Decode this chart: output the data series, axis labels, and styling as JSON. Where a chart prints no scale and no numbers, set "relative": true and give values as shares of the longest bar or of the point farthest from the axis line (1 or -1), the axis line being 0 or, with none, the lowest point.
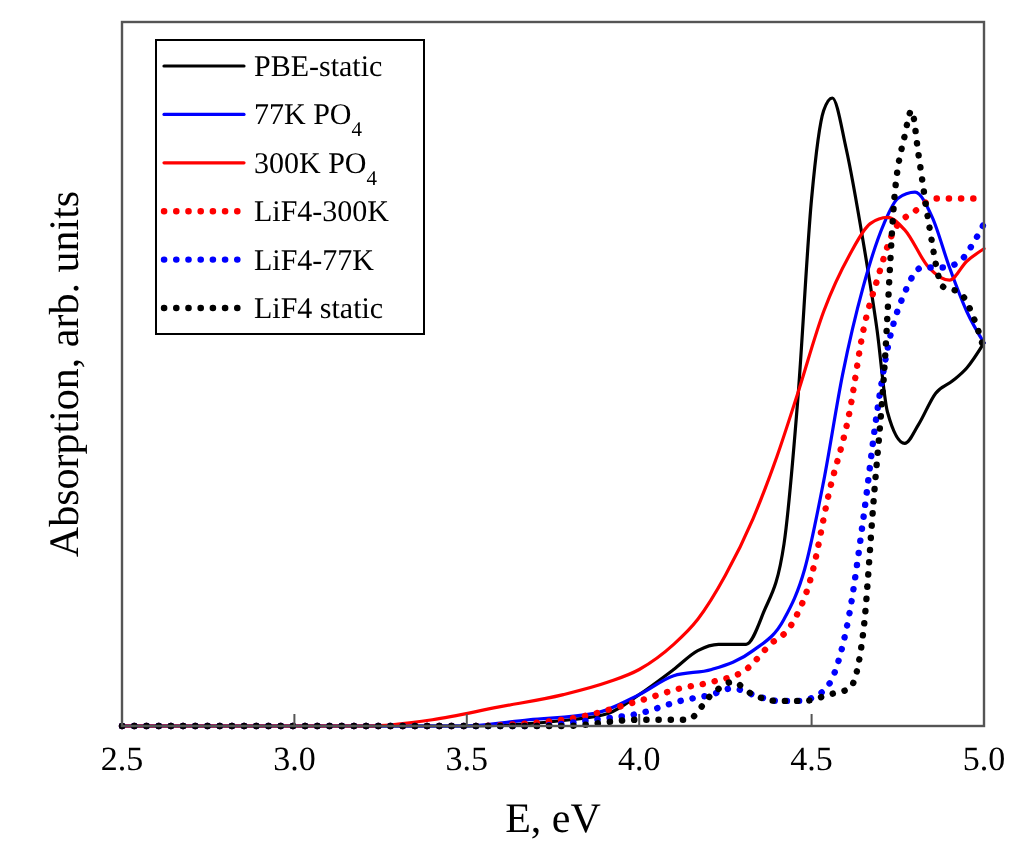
{
  "chart_data": {
    "type": "line",
    "relative": true,
    "xlabel": "E, eV",
    "ylabel": "Absorption, arb. units",
    "xlim": [
      2.5,
      5.0
    ],
    "xticks": [
      {
        "value": 2.5,
        "label": "2.5"
      },
      {
        "value": 3.0,
        "label": "3.0"
      },
      {
        "value": 3.5,
        "label": "3.5"
      },
      {
        "value": 4.0,
        "label": "4.0"
      },
      {
        "value": 4.5,
        "label": "4.5"
      },
      {
        "value": 5.0,
        "label": "5.0"
      }
    ],
    "legend": "top left",
    "series": [
      {
        "name": "PBE-static",
        "color": "#000000",
        "line_style": "solid",
        "x": [
          2.5,
          3.5,
          3.8,
          3.91,
          4.0,
          4.1,
          4.17,
          4.23,
          4.31,
          4.36,
          4.42,
          4.46,
          4.5,
          4.535,
          4.56,
          4.6,
          4.65,
          4.69,
          4.72,
          4.77,
          4.81,
          4.86,
          4.91,
          4.95,
          5.0
        ],
        "values": [
          0,
          0,
          0.01,
          0.02,
          0.05,
          0.09,
          0.12,
          0.13,
          0.13,
          0.18,
          0.29,
          0.52,
          0.84,
          0.98,
          1.0,
          0.92,
          0.77,
          0.63,
          0.5,
          0.45,
          0.48,
          0.53,
          0.55,
          0.57,
          0.61
        ]
      },
      {
        "name": "77K PO$_{4}$",
        "color": "#0000ff",
        "line_style": "solid",
        "x": [
          2.5,
          3.49,
          3.68,
          3.87,
          4.0,
          4.1,
          4.21,
          4.33,
          4.42,
          4.48,
          4.535,
          4.59,
          4.65,
          4.71,
          4.75,
          4.8,
          4.85,
          4.9,
          4.95,
          5.0
        ],
        "values": [
          0,
          0,
          0.01,
          0.02,
          0.05,
          0.08,
          0.09,
          0.12,
          0.17,
          0.25,
          0.39,
          0.56,
          0.7,
          0.8,
          0.84,
          0.85,
          0.81,
          0.73,
          0.66,
          0.61
        ]
      },
      {
        "name": "300K PO$_{4}$",
        "color": "#ff0000",
        "line_style": "solid",
        "x": [
          2.5,
          3.21,
          3.4,
          3.59,
          3.78,
          3.91,
          4.0,
          4.1,
          4.17,
          4.25,
          4.33,
          4.4,
          4.46,
          4.535,
          4.61,
          4.67,
          4.72,
          4.77,
          4.84,
          4.9,
          4.95,
          5.0
        ],
        "values": [
          0,
          0,
          0.01,
          0.03,
          0.05,
          0.07,
          0.09,
          0.13,
          0.17,
          0.24,
          0.33,
          0.43,
          0.53,
          0.66,
          0.75,
          0.8,
          0.81,
          0.79,
          0.73,
          0.71,
          0.74,
          0.76
        ]
      },
      {
        "name": "LiF4-300K",
        "color": "#ff0000",
        "line_style": "dotted",
        "x": [
          2.5,
          3.49,
          3.78,
          4.0,
          4.12,
          4.21,
          4.31,
          4.38,
          4.44,
          4.5,
          4.55,
          4.61,
          4.65,
          4.69,
          4.74,
          4.8,
          4.86,
          4.93,
          5.0
        ],
        "values": [
          0,
          0,
          0.01,
          0.04,
          0.06,
          0.07,
          0.09,
          0.13,
          0.16,
          0.24,
          0.37,
          0.5,
          0.63,
          0.71,
          0.79,
          0.82,
          0.84,
          0.84,
          0.84
        ]
      },
      {
        "name": "LiF4-77K",
        "color": "#0000ff",
        "line_style": "dotted",
        "x": [
          2.5,
          3.68,
          3.87,
          4.0,
          4.12,
          4.21,
          4.27,
          4.33,
          4.4,
          4.46,
          4.52,
          4.57,
          4.61,
          4.65,
          4.69,
          4.72,
          4.77,
          4.82,
          4.88,
          4.93,
          4.97,
          5.0
        ],
        "values": [
          0,
          0,
          0.01,
          0.02,
          0.04,
          0.05,
          0.06,
          0.05,
          0.04,
          0.04,
          0.05,
          0.09,
          0.18,
          0.33,
          0.5,
          0.6,
          0.69,
          0.73,
          0.73,
          0.74,
          0.77,
          0.8
        ]
      },
      {
        "name": "LiF4 static",
        "color": "#000000",
        "line_style": "dotted",
        "x": [
          2.5,
          3.78,
          4.0,
          4.14,
          4.21,
          4.27,
          4.33,
          4.4,
          4.48,
          4.55,
          4.61,
          4.65,
          4.68,
          4.71,
          4.74,
          4.77,
          4.79,
          4.81,
          4.84,
          4.88,
          4.93,
          4.97,
          5.0
        ],
        "values": [
          0,
          0,
          0.01,
          0.01,
          0.05,
          0.07,
          0.05,
          0.04,
          0.04,
          0.05,
          0.06,
          0.15,
          0.36,
          0.56,
          0.84,
          0.94,
          0.98,
          0.91,
          0.8,
          0.7,
          0.69,
          0.65,
          0.6
        ]
      }
    ]
  }
}
